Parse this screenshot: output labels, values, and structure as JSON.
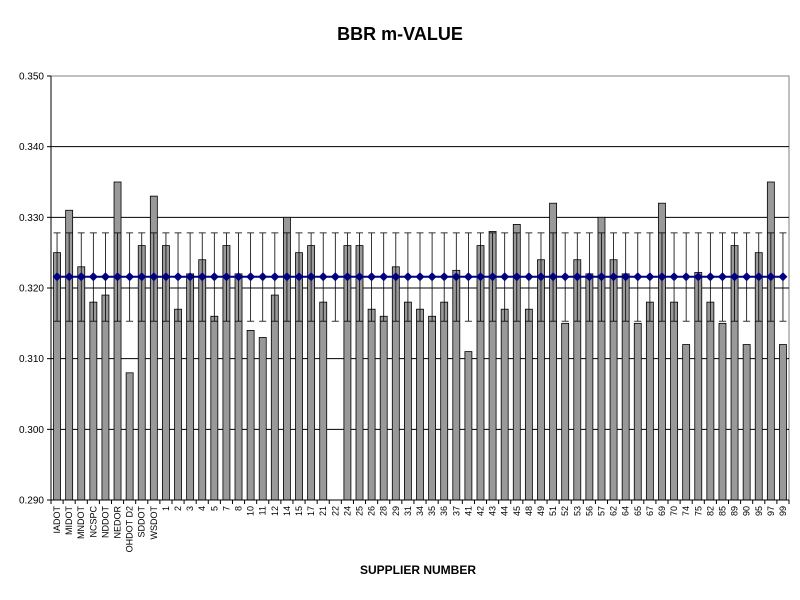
{
  "chart_data": {
    "type": "bar",
    "title": "BBR m-VALUE",
    "xlabel": "SUPPLIER NUMBER",
    "ylabel": "",
    "ylim": [
      0.29,
      0.35
    ],
    "yticks": [
      "0.290",
      "0.300",
      "0.310",
      "0.320",
      "0.330",
      "0.340",
      "0.350"
    ],
    "grid": true,
    "categories": [
      "IADOT",
      "MIDOT",
      "MNDOT",
      "NCSPC",
      "NDDOT",
      "NEDOR",
      "OHDOT D2",
      "SDDOT",
      "WSDOT",
      "1",
      "2",
      "3",
      "4",
      "5",
      "7",
      "8",
      "10",
      "11",
      "12",
      "14",
      "15",
      "17",
      "21",
      "22",
      "24",
      "25",
      "26",
      "28",
      "29",
      "31",
      "34",
      "35",
      "36",
      "37",
      "41",
      "42",
      "43",
      "44",
      "45",
      "48",
      "49",
      "51",
      "52",
      "53",
      "56",
      "57",
      "62",
      "64",
      "65",
      "67",
      "69",
      "70",
      "74",
      "75",
      "82",
      "85",
      "89",
      "90",
      "95",
      "97",
      "99"
    ],
    "series": [
      {
        "type": "bar",
        "color": "#999999",
        "values": [
          0.325,
          0.331,
          0.323,
          0.318,
          0.319,
          0.335,
          0.308,
          0.326,
          0.333,
          0.326,
          0.317,
          0.322,
          0.324,
          0.316,
          0.326,
          0.322,
          0.314,
          0.313,
          0.319,
          0.33,
          0.325,
          0.326,
          0.318,
          null,
          0.326,
          0.326,
          0.317,
          0.316,
          0.323,
          0.318,
          0.317,
          0.316,
          0.318,
          0.3225,
          0.311,
          0.326,
          0.328,
          0.317,
          0.329,
          0.317,
          0.324,
          0.332,
          0.315,
          0.324,
          0.322,
          0.33,
          0.324,
          0.322,
          0.315,
          0.318,
          0.332,
          0.318,
          0.312,
          0.3222,
          0.318,
          0.315,
          0.326,
          0.312,
          0.325,
          0.335,
          0.312
        ]
      },
      {
        "type": "line",
        "color": "#000080",
        "marker": "diamond",
        "value": 0.3216,
        "error_bar": [
          0.3153,
          0.3278
        ]
      }
    ]
  }
}
